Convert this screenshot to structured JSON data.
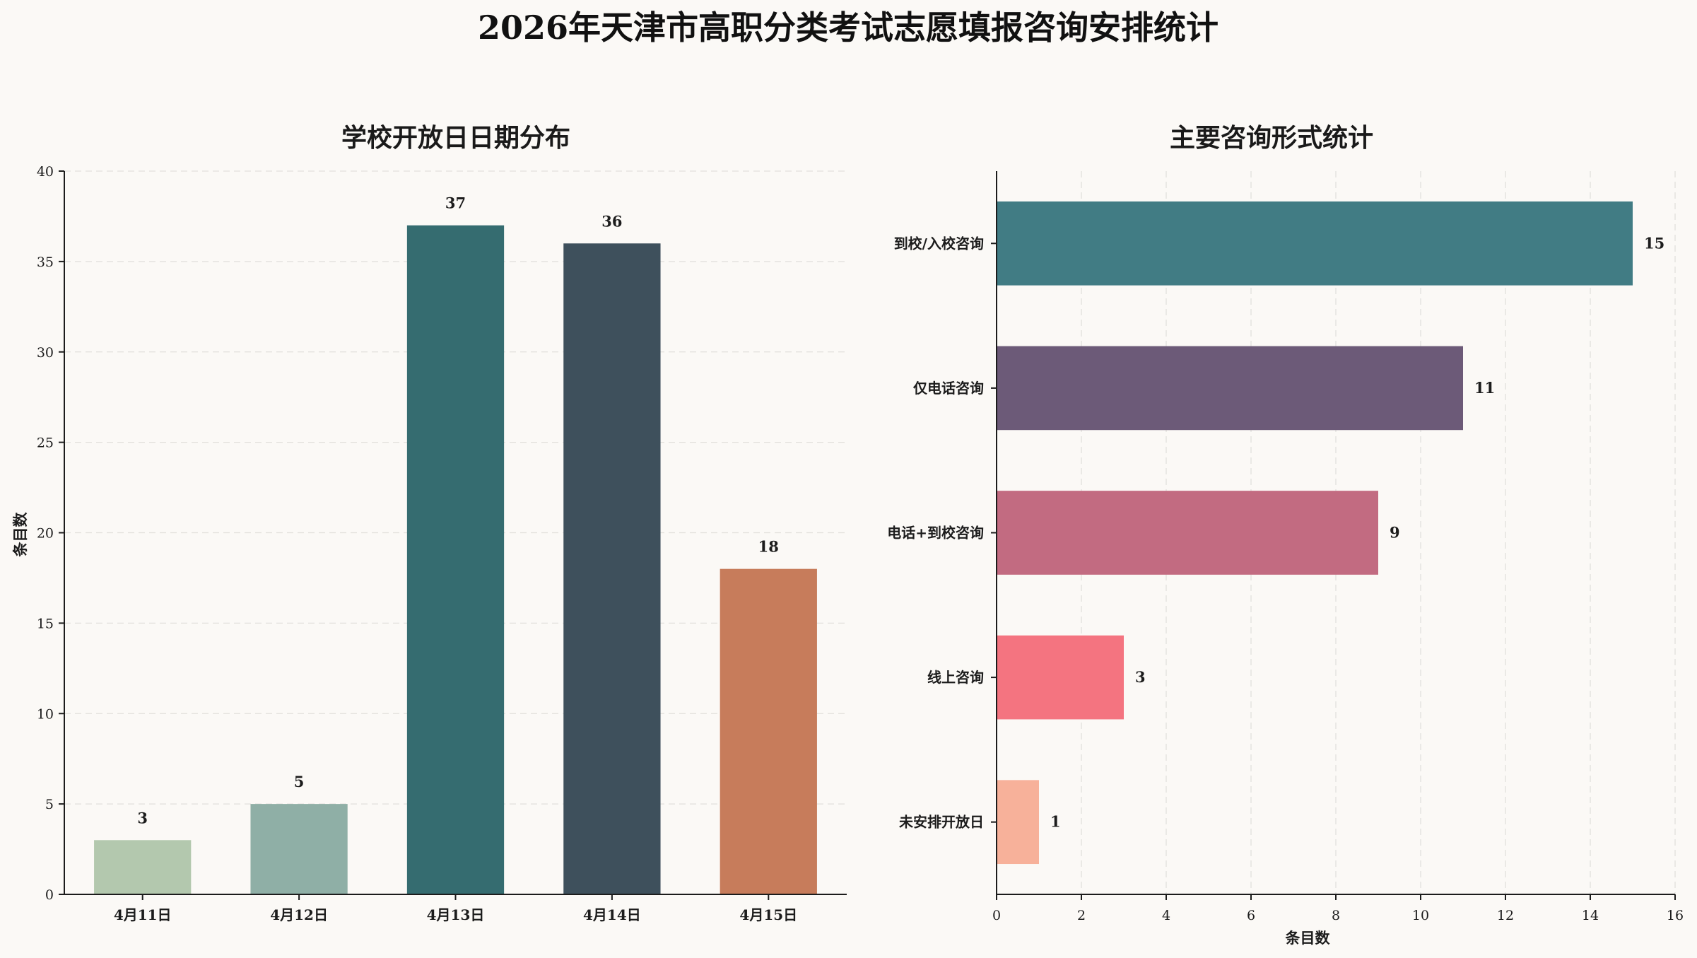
{
  "figure": {
    "title": "2026年天津市高职分类考试志愿填报咨询安排统计",
    "background": "#fbf9f6"
  },
  "chart_data": [
    {
      "type": "bar",
      "title": "学校开放日日期分布",
      "xlabel": "",
      "ylabel": "条目数",
      "categories": [
        "4月11日",
        "4月12日",
        "4月13日",
        "4月14日",
        "4月15日"
      ],
      "values": [
        3,
        5,
        37,
        36,
        18
      ],
      "colors": [
        "#b3c8ae",
        "#8fafa6",
        "#356c70",
        "#3e505c",
        "#c77c5b"
      ],
      "ylim": [
        0,
        40
      ],
      "yticks": [
        0,
        5,
        10,
        15,
        20,
        25,
        30,
        35,
        40
      ],
      "grid": "y",
      "data_labels": true
    },
    {
      "type": "bar",
      "orientation": "horizontal",
      "title": "主要咨询形式统计",
      "xlabel": "条目数",
      "ylabel": "",
      "categories": [
        "到校/入校咨询",
        "仅电话咨询",
        "电话+到校咨询",
        "线上咨询",
        "未安排开放日"
      ],
      "values": [
        15,
        11,
        9,
        3,
        1
      ],
      "colors": [
        "#417c84",
        "#6c5a78",
        "#c26b81",
        "#f47480",
        "#f7b19a"
      ],
      "xlim": [
        0,
        16
      ],
      "xticks": [
        0,
        2,
        4,
        6,
        8,
        10,
        12,
        14,
        16
      ],
      "grid": "x",
      "data_labels": true
    }
  ]
}
